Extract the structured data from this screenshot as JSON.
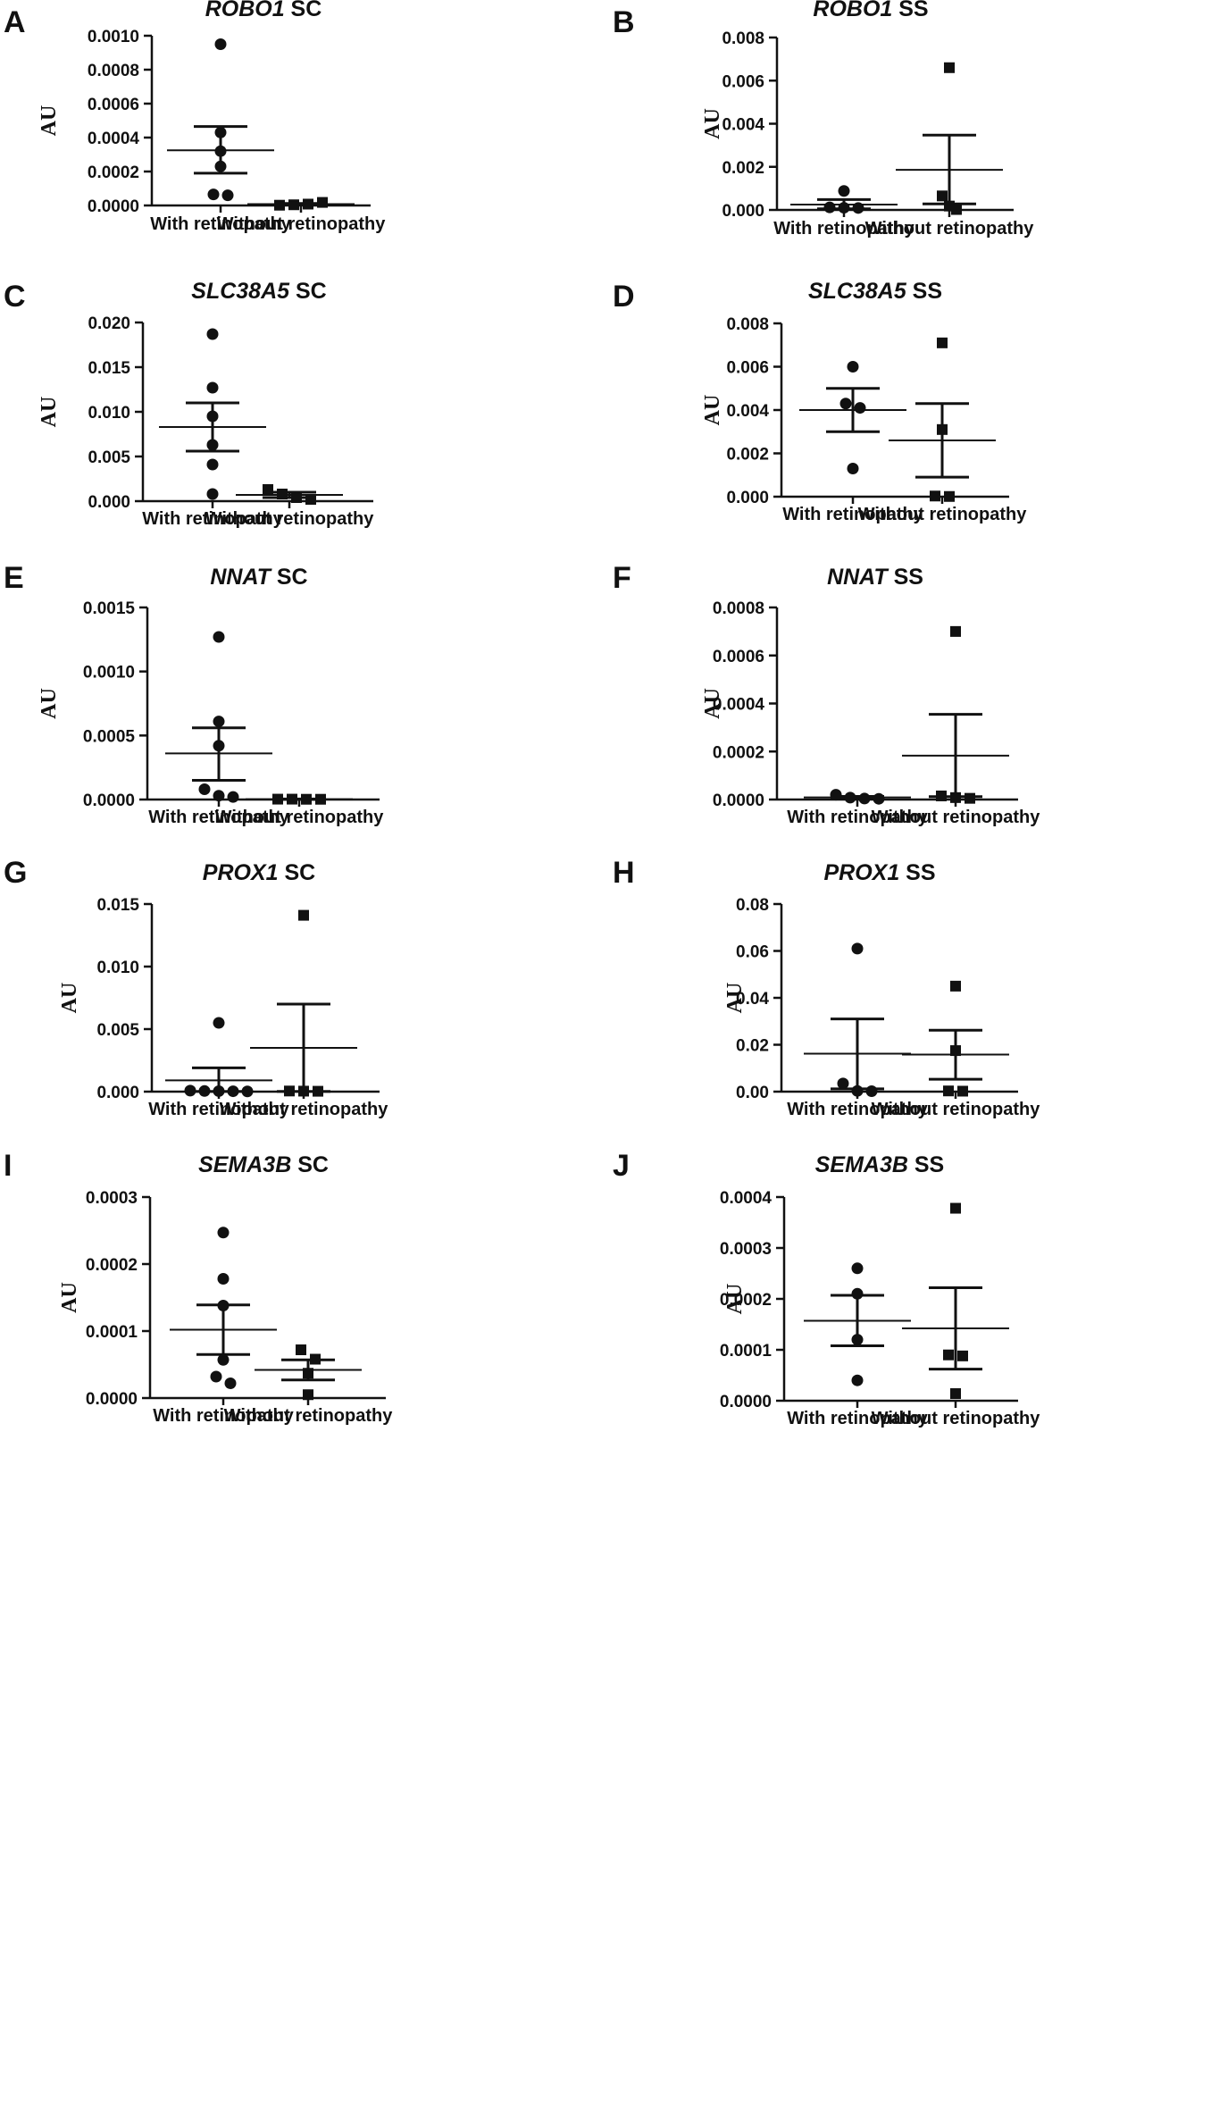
{
  "chart_data": [
    {
      "panel": "A",
      "title_gene": "ROBO1",
      "title_suffix": " SC",
      "type": "scatter",
      "ylabel": "AU",
      "ylim": [
        0,
        0.001
      ],
      "yticks": [
        {
          "v": 0,
          "t": "0.0000"
        },
        {
          "v": 0.0002,
          "t": "0.0002"
        },
        {
          "v": 0.0004,
          "t": "0.0004"
        },
        {
          "v": 0.0006,
          "t": "0.0006"
        },
        {
          "v": 0.0008,
          "t": "0.0008"
        },
        {
          "v": 0.001,
          "t": "0.0010"
        }
      ],
      "categories": [
        "With retinopathy",
        "Without retinopathy"
      ],
      "groups": [
        {
          "marker": "circle",
          "points": [
            0.00095,
            0.00043,
            0.00032,
            0.00023,
            6.5e-05,
            6e-05
          ],
          "mean": 0.000325,
          "sem_low": 0.00019,
          "sem_high": 0.000465
        },
        {
          "marker": "square",
          "points": [
            1.5e-06,
            4e-06,
            8e-06,
            1.8e-05
          ],
          "mean": 8e-06,
          "sem_low": 4.5e-06,
          "sem_high": 1.2e-05
        }
      ]
    },
    {
      "panel": "B",
      "title_gene": "ROBO1",
      "title_suffix": " SS",
      "type": "scatter",
      "ylabel": "AU",
      "ylim": [
        0,
        0.008
      ],
      "yticks": [
        {
          "v": 0,
          "t": "0.000"
        },
        {
          "v": 0.002,
          "t": "0.002"
        },
        {
          "v": 0.004,
          "t": "0.004"
        },
        {
          "v": 0.006,
          "t": "0.006"
        },
        {
          "v": 0.008,
          "t": "0.008"
        }
      ],
      "categories": [
        "With retinopathy",
        "Without retinopathy"
      ],
      "groups": [
        {
          "marker": "circle",
          "points": [
            0.00088,
            0.00012,
            0.0001,
            9e-05
          ],
          "mean": 0.00025,
          "sem_low": 5e-05,
          "sem_high": 0.00048
        },
        {
          "marker": "square",
          "points": [
            0.0066,
            0.00065,
            0.00018,
            2e-05
          ],
          "mean": 0.00186,
          "sem_low": 0.00028,
          "sem_high": 0.00347
        }
      ]
    },
    {
      "panel": "C",
      "title_gene": "SLC38A5",
      "title_suffix": " SC",
      "type": "scatter",
      "ylabel": "AU",
      "ylim": [
        0,
        0.02
      ],
      "yticks": [
        {
          "v": 0,
          "t": "0.000"
        },
        {
          "v": 0.005,
          "t": "0.005"
        },
        {
          "v": 0.01,
          "t": "0.010"
        },
        {
          "v": 0.015,
          "t": "0.015"
        },
        {
          "v": 0.02,
          "t": "0.020"
        }
      ],
      "categories": [
        "With retinopathy",
        "Without retinopathy"
      ],
      "groups": [
        {
          "marker": "circle",
          "points": [
            0.0187,
            0.0127,
            0.0095,
            0.0063,
            0.0041,
            0.0008
          ],
          "mean": 0.0083,
          "sem_low": 0.0056,
          "sem_high": 0.011
        },
        {
          "marker": "square",
          "points": [
            0.0013,
            0.0008,
            0.0004,
            0.0002
          ],
          "mean": 0.0007,
          "sem_low": 0.0004,
          "sem_high": 0.001
        }
      ]
    },
    {
      "panel": "D",
      "title_gene": "SLC38A5",
      "title_suffix": " SS",
      "type": "scatter",
      "ylabel": "AU",
      "ylim": [
        0,
        0.008
      ],
      "yticks": [
        {
          "v": 0,
          "t": "0.000"
        },
        {
          "v": 0.002,
          "t": "0.002"
        },
        {
          "v": 0.004,
          "t": "0.004"
        },
        {
          "v": 0.006,
          "t": "0.006"
        },
        {
          "v": 0.008,
          "t": "0.008"
        }
      ],
      "categories": [
        "With retinopathy",
        "Without retinopathy"
      ],
      "groups": [
        {
          "marker": "circle",
          "points": [
            0.006,
            0.0043,
            0.0041,
            0.0013
          ],
          "mean": 0.004,
          "sem_low": 0.003,
          "sem_high": 0.005
        },
        {
          "marker": "square",
          "points": [
            0.0071,
            0.0031,
            3e-05,
            1e-05
          ],
          "mean": 0.0026,
          "sem_low": 0.0009,
          "sem_high": 0.0043
        }
      ]
    },
    {
      "panel": "E",
      "title_gene": "NNAT",
      "title_suffix": " SC",
      "type": "scatter",
      "ylabel": "AU",
      "ylim": [
        0,
        0.0015
      ],
      "yticks": [
        {
          "v": 0,
          "t": "0.0000"
        },
        {
          "v": 0.0005,
          "t": "0.0005"
        },
        {
          "v": 0.001,
          "t": "0.0010"
        },
        {
          "v": 0.0015,
          "t": "0.0015"
        }
      ],
      "categories": [
        "With retinopathy",
        "Without retinopathy"
      ],
      "groups": [
        {
          "marker": "circle",
          "points": [
            0.00127,
            0.00061,
            0.00042,
            8e-05,
            3e-05,
            2e-05
          ],
          "mean": 0.00036,
          "sem_low": 0.00015,
          "sem_high": 0.00056
        },
        {
          "marker": "square",
          "points": [
            3e-06,
            3e-06,
            2e-06,
            2e-06
          ],
          "mean": 2.5e-06,
          "sem_low": 1e-06,
          "sem_high": 4e-06
        }
      ]
    },
    {
      "panel": "F",
      "title_gene": "NNAT",
      "title_suffix": " SS",
      "type": "scatter",
      "ylabel": "AU",
      "ylim": [
        0,
        0.0008
      ],
      "yticks": [
        {
          "v": 0,
          "t": "0.0000"
        },
        {
          "v": 0.0002,
          "t": "0.0002"
        },
        {
          "v": 0.0004,
          "t": "0.0004"
        },
        {
          "v": 0.0006,
          "t": "0.0006"
        },
        {
          "v": 0.0008,
          "t": "0.0008"
        }
      ],
      "categories": [
        "With retinopathy",
        "Without retinopathy"
      ],
      "groups": [
        {
          "marker": "circle",
          "points": [
            2e-05,
            8e-06,
            4e-06,
            3e-06
          ],
          "mean": 9e-06,
          "sem_low": 3e-06,
          "sem_high": 1.3e-05
        },
        {
          "marker": "square",
          "points": [
            0.0007,
            1.5e-05,
            8e-06,
            5e-06
          ],
          "mean": 0.000183,
          "sem_low": 1.2e-05,
          "sem_high": 0.000355
        }
      ]
    },
    {
      "panel": "G",
      "title_gene": "PROX1",
      "title_suffix": " SC",
      "type": "scatter",
      "ylabel": "AU",
      "ylim": [
        0,
        0.015
      ],
      "yticks": [
        {
          "v": 0,
          "t": "0.000"
        },
        {
          "v": 0.005,
          "t": "0.005"
        },
        {
          "v": 0.01,
          "t": "0.010"
        },
        {
          "v": 0.015,
          "t": "0.015"
        }
      ],
      "categories": [
        "With retinopathy",
        "Without retinopathy"
      ],
      "groups": [
        {
          "marker": "circle",
          "points": [
            0.0055,
            8e-05,
            5e-05,
            4e-05,
            3e-05,
            2e-05
          ],
          "mean": 0.0009,
          "sem_low": 2e-05,
          "sem_high": 0.0019
        },
        {
          "marker": "square",
          "points": [
            0.0141,
            5e-05,
            4e-05,
            3e-05
          ],
          "mean": 0.0035,
          "sem_low": 2e-05,
          "sem_high": 0.007
        }
      ]
    },
    {
      "panel": "H",
      "title_gene": "PROX1",
      "title_suffix": " SS",
      "type": "scatter",
      "ylabel": "AU",
      "ylim": [
        0,
        0.08
      ],
      "yticks": [
        {
          "v": 0,
          "t": "0.00"
        },
        {
          "v": 0.02,
          "t": "0.02"
        },
        {
          "v": 0.04,
          "t": "0.04"
        },
        {
          "v": 0.06,
          "t": "0.06"
        },
        {
          "v": 0.08,
          "t": "0.08"
        }
      ],
      "categories": [
        "With retinopathy",
        "Without retinopathy"
      ],
      "groups": [
        {
          "marker": "circle",
          "points": [
            0.061,
            0.0035,
            0.0003,
            0.0002
          ],
          "mean": 0.0162,
          "sem_low": 0.0012,
          "sem_high": 0.031
        },
        {
          "marker": "square",
          "points": [
            0.045,
            0.0175,
            0.0003,
            0.0002
          ],
          "mean": 0.0158,
          "sem_low": 0.0053,
          "sem_high": 0.0262
        }
      ]
    },
    {
      "panel": "I",
      "title_gene": "SEMA3B",
      "title_suffix": " SC",
      "type": "scatter",
      "ylabel": "AU",
      "ylim": [
        0,
        0.0003
      ],
      "yticks": [
        {
          "v": 0,
          "t": "0.0000"
        },
        {
          "v": 0.0001,
          "t": "0.0001"
        },
        {
          "v": 0.0002,
          "t": "0.0002"
        },
        {
          "v": 0.0003,
          "t": "0.0003"
        }
      ],
      "categories": [
        "With retinopathy",
        "Without retinopathy"
      ],
      "groups": [
        {
          "marker": "circle",
          "points": [
            0.000247,
            0.000178,
            0.000138,
            5.7e-05,
            3.2e-05,
            2.2e-05
          ],
          "mean": 0.000102,
          "sem_low": 6.5e-05,
          "sem_high": 0.000139
        },
        {
          "marker": "square",
          "points": [
            7.2e-05,
            5.8e-05,
            3.7e-05,
            5e-06
          ],
          "mean": 4.2e-05,
          "sem_low": 2.7e-05,
          "sem_high": 5.7e-05
        }
      ]
    },
    {
      "panel": "J",
      "title_gene": "SEMA3B",
      "title_suffix": " SS",
      "type": "scatter",
      "ylabel": "AU",
      "ylim": [
        0,
        0.0004
      ],
      "yticks": [
        {
          "v": 0,
          "t": "0.0000"
        },
        {
          "v": 0.0001,
          "t": "0.0001"
        },
        {
          "v": 0.0002,
          "t": "0.0002"
        },
        {
          "v": 0.0003,
          "t": "0.0003"
        },
        {
          "v": 0.0004,
          "t": "0.0004"
        }
      ],
      "categories": [
        "With retinopathy",
        "Without retinopathy"
      ],
      "groups": [
        {
          "marker": "circle",
          "points": [
            0.00026,
            0.00021,
            0.00012,
            4e-05
          ],
          "mean": 0.000157,
          "sem_low": 0.000108,
          "sem_high": 0.000207
        },
        {
          "marker": "square",
          "points": [
            0.000378,
            9e-05,
            8.8e-05,
            1.4e-05
          ],
          "mean": 0.000142,
          "sem_low": 6.2e-05,
          "sem_high": 0.000222
        }
      ]
    }
  ]
}
